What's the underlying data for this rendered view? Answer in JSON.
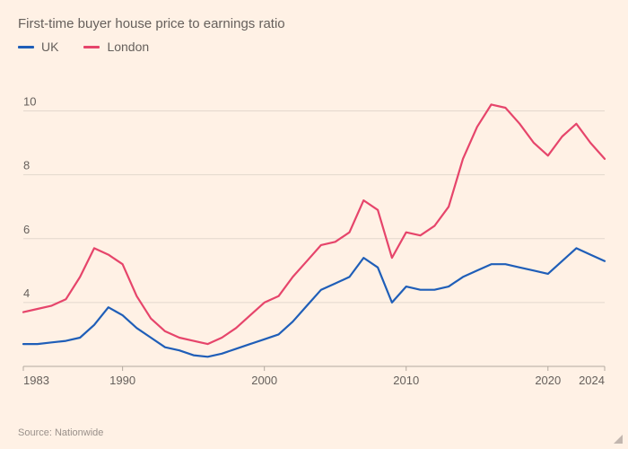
{
  "chart": {
    "type": "line",
    "subtitle": "First-time buyer house price to earnings ratio",
    "source_text": "Source: Nationwide",
    "background_color": "#fff1e5",
    "grid_color": "#e3d8cd",
    "baseline_color": "#b3a99f",
    "text_color": "#66605c",
    "source_color": "#99908a",
    "subtitle_fontsize": 15,
    "axis_fontsize": 13,
    "source_fontsize": 11,
    "line_width": 2.2,
    "xlim": [
      1983,
      2024
    ],
    "ylim": [
      2,
      11
    ],
    "yticks": [
      4,
      6,
      8,
      10
    ],
    "xticks": [
      1983,
      1990,
      2000,
      2010,
      2020,
      2024
    ],
    "legend": [
      {
        "label": "UK",
        "color": "#1f5eb8"
      },
      {
        "label": "London",
        "color": "#e6456b"
      }
    ],
    "series": [
      {
        "name": "UK",
        "color": "#1f5eb8",
        "points": [
          [
            1983,
            2.7
          ],
          [
            1984,
            2.7
          ],
          [
            1985,
            2.75
          ],
          [
            1986,
            2.8
          ],
          [
            1987,
            2.9
          ],
          [
            1988,
            3.3
          ],
          [
            1989,
            3.85
          ],
          [
            1990,
            3.6
          ],
          [
            1991,
            3.2
          ],
          [
            1992,
            2.9
          ],
          [
            1993,
            2.6
          ],
          [
            1994,
            2.5
          ],
          [
            1995,
            2.35
          ],
          [
            1996,
            2.3
          ],
          [
            1997,
            2.4
          ],
          [
            1998,
            2.55
          ],
          [
            1999,
            2.7
          ],
          [
            2000,
            2.85
          ],
          [
            2001,
            3.0
          ],
          [
            2002,
            3.4
          ],
          [
            2003,
            3.9
          ],
          [
            2004,
            4.4
          ],
          [
            2005,
            4.6
          ],
          [
            2006,
            4.8
          ],
          [
            2007,
            5.4
          ],
          [
            2008,
            5.1
          ],
          [
            2009,
            4.0
          ],
          [
            2010,
            4.5
          ],
          [
            2011,
            4.4
          ],
          [
            2012,
            4.4
          ],
          [
            2013,
            4.5
          ],
          [
            2014,
            4.8
          ],
          [
            2015,
            5.0
          ],
          [
            2016,
            5.2
          ],
          [
            2017,
            5.2
          ],
          [
            2018,
            5.1
          ],
          [
            2019,
            5.0
          ],
          [
            2020,
            4.9
          ],
          [
            2021,
            5.3
          ],
          [
            2022,
            5.7
          ],
          [
            2023,
            5.5
          ],
          [
            2024,
            5.3
          ]
        ]
      },
      {
        "name": "London",
        "color": "#e6456b",
        "points": [
          [
            1983,
            3.7
          ],
          [
            1984,
            3.8
          ],
          [
            1985,
            3.9
          ],
          [
            1986,
            4.1
          ],
          [
            1987,
            4.8
          ],
          [
            1988,
            5.7
          ],
          [
            1989,
            5.5
          ],
          [
            1990,
            5.2
          ],
          [
            1991,
            4.2
          ],
          [
            1992,
            3.5
          ],
          [
            1993,
            3.1
          ],
          [
            1994,
            2.9
          ],
          [
            1995,
            2.8
          ],
          [
            1996,
            2.7
          ],
          [
            1997,
            2.9
          ],
          [
            1998,
            3.2
          ],
          [
            1999,
            3.6
          ],
          [
            2000,
            4.0
          ],
          [
            2001,
            4.2
          ],
          [
            2002,
            4.8
          ],
          [
            2003,
            5.3
          ],
          [
            2004,
            5.8
          ],
          [
            2005,
            5.9
          ],
          [
            2006,
            6.2
          ],
          [
            2007,
            7.2
          ],
          [
            2008,
            6.9
          ],
          [
            2009,
            5.4
          ],
          [
            2010,
            6.2
          ],
          [
            2011,
            6.1
          ],
          [
            2012,
            6.4
          ],
          [
            2013,
            7.0
          ],
          [
            2014,
            8.5
          ],
          [
            2015,
            9.5
          ],
          [
            2016,
            10.2
          ],
          [
            2017,
            10.1
          ],
          [
            2018,
            9.6
          ],
          [
            2019,
            9.0
          ],
          [
            2020,
            8.6
          ],
          [
            2021,
            9.2
          ],
          [
            2022,
            9.6
          ],
          [
            2023,
            9.0
          ],
          [
            2024,
            8.5
          ]
        ]
      }
    ]
  }
}
